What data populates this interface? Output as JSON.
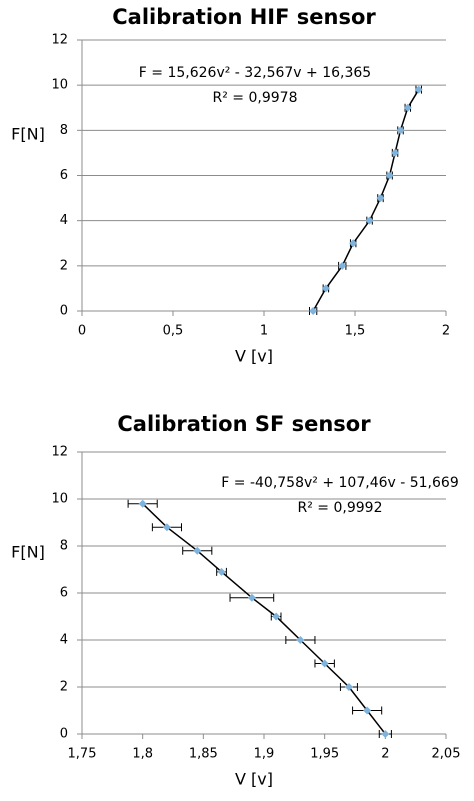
{
  "chart_data": [
    {
      "type": "scatter",
      "title": "Calibration HIF sensor",
      "x_label": "V [v]",
      "y_label": "F[N]",
      "annotations": [
        "F = 15,626v² - 32,567v + 16,365",
        "R² = 0,9978"
      ],
      "x": [
        1.27,
        1.34,
        1.43,
        1.49,
        1.58,
        1.64,
        1.69,
        1.72,
        1.75,
        1.79,
        1.85
      ],
      "values": [
        0,
        1,
        2,
        3,
        4,
        5,
        6,
        7,
        8,
        9,
        9.8
      ],
      "xerr": [
        0.02,
        0.015,
        0.02,
        0.015,
        0.015,
        0.015,
        0.015,
        0.015,
        0.015,
        0.015,
        0.015
      ],
      "xlim": [
        0,
        2
      ],
      "xticks": [
        0,
        {
          "value": 0.5,
          "label": "0,5"
        },
        1,
        {
          "value": 1.5,
          "label": "1,5"
        },
        2
      ],
      "ylim": [
        0,
        12
      ],
      "yticks": [
        0,
        2,
        4,
        6,
        8,
        10,
        12
      ],
      "grid": true,
      "color": "#7fb3dc",
      "trendline_color": "#000000"
    },
    {
      "type": "scatter",
      "title": "Calibration  SF sensor",
      "x_label": "V [v]",
      "y_label": "F[N]",
      "annotations": [
        "F = -40,758v² + 107,46v - 51,669",
        "R² = 0,9992"
      ],
      "x": [
        2.0,
        1.985,
        1.97,
        1.95,
        1.93,
        1.91,
        1.89,
        1.865,
        1.845,
        1.82,
        1.8
      ],
      "values": [
        0,
        1,
        2,
        3,
        4,
        5,
        5.8,
        6.9,
        7.8,
        8.8,
        9.8
      ],
      "xerr": [
        0.005,
        0.012,
        0.007,
        0.008,
        0.012,
        0.004,
        0.018,
        0.004,
        0.012,
        0.012,
        0.012
      ],
      "xlim": [
        1.75,
        2.05
      ],
      "xticks": [
        {
          "value": 1.75,
          "label": "1,75"
        },
        {
          "value": 1.8,
          "label": "1,8"
        },
        {
          "value": 1.85,
          "label": "1,85"
        },
        {
          "value": 1.9,
          "label": "1,9"
        },
        {
          "value": 1.95,
          "label": "1,95"
        },
        2,
        {
          "value": 2.05,
          "label": "2,05"
        }
      ],
      "ylim": [
        0,
        12
      ],
      "yticks": [
        0,
        2,
        4,
        6,
        8,
        10,
        12
      ],
      "grid": true,
      "color": "#7fb3dc",
      "trendline_color": "#000000"
    }
  ]
}
